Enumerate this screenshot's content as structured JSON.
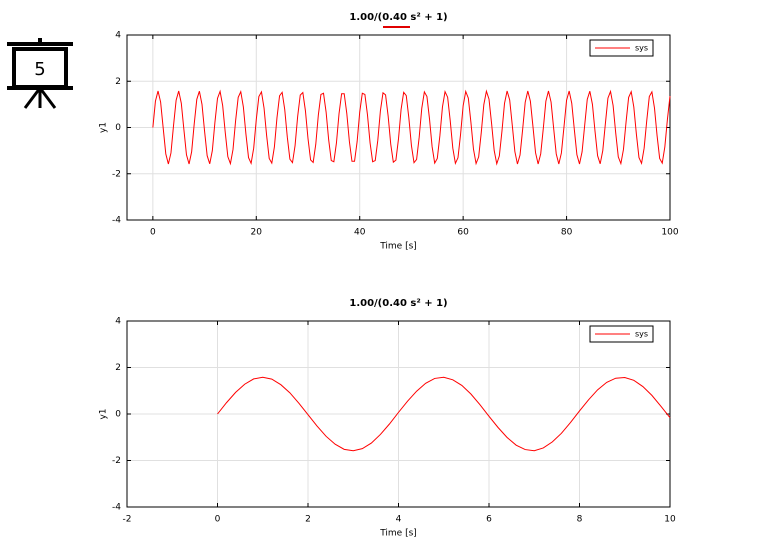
{
  "badge": "5",
  "chart_data": [
    {
      "type": "line",
      "title": "1.00/(0.40 s² + 1)",
      "x_label": "Time [s]",
      "y_label": "y1",
      "xlim": [
        -5,
        100
      ],
      "xticks": [
        0,
        20,
        40,
        60,
        80,
        100
      ],
      "ylim": [
        -4,
        4
      ],
      "yticks": [
        -4,
        -2,
        0,
        2,
        4
      ],
      "grid": true,
      "legend": "upper right",
      "x": [
        0,
        0.5,
        1,
        1.5,
        2,
        2.5,
        3,
        3.5,
        4,
        4.5,
        5,
        5.5,
        6,
        6.5,
        7,
        7.5,
        8,
        8.5,
        9,
        9.5,
        10,
        10.5,
        11,
        11.5,
        12,
        12.5,
        13,
        13.5,
        14,
        14.5,
        15,
        15.5,
        16,
        16.5,
        17,
        17.5,
        18,
        18.5,
        19,
        19.5,
        20,
        20.5,
        21,
        21.5,
        22,
        22.5,
        23,
        23.5,
        24,
        24.5,
        25,
        25.5,
        26,
        26.5,
        27,
        27.5,
        28,
        28.5,
        29,
        29.5,
        30,
        30.5,
        31,
        31.5,
        32,
        32.5,
        33,
        33.5,
        34,
        34.5,
        35,
        35.5,
        36,
        36.5,
        37,
        37.5,
        38,
        38.5,
        39,
        39.5,
        40,
        40.5,
        41,
        41.5,
        42,
        42.5,
        43,
        43.5,
        44,
        44.5,
        45,
        45.5,
        46,
        46.5,
        47,
        47.5,
        48,
        48.5,
        49,
        49.5,
        50,
        50.5,
        51,
        51.5,
        52,
        52.5,
        53,
        53.5,
        54,
        54.5,
        55,
        55.5,
        56,
        56.5,
        57,
        57.5,
        58,
        58.5,
        59,
        59.5,
        60,
        60.5,
        61,
        61.5,
        62,
        62.5,
        63,
        63.5,
        64,
        64.5,
        65,
        65.5,
        66,
        66.5,
        67,
        67.5,
        68,
        68.5,
        69,
        69.5,
        70,
        70.5,
        71,
        71.5,
        72,
        72.5,
        73,
        73.5,
        74,
        74.5,
        75,
        75.5,
        76,
        76.5,
        77,
        77.5,
        78,
        78.5,
        79,
        79.5,
        80,
        80.5,
        81,
        81.5,
        82,
        82.5,
        83,
        83.5,
        84,
        84.5,
        85,
        85.5,
        86,
        86.5,
        87,
        87.5,
        88,
        88.5,
        89,
        89.5,
        90,
        90.5,
        91,
        91.5,
        92,
        92.5,
        93,
        93.5,
        94,
        94.5,
        95,
        95.5,
        96,
        96.5,
        97,
        97.5,
        98,
        98.5,
        99,
        99.5,
        100
      ],
      "series": [
        {
          "name": "sys",
          "color": "#ff0000",
          "values": [
            0,
            1.14,
            1.58,
            1.1,
            -0.03,
            -1.14,
            -1.58,
            -1.1,
            0.09,
            1.18,
            1.58,
            1.05,
            -0.09,
            -1.18,
            -1.58,
            -1.05,
            0.16,
            1.22,
            1.57,
            1.0,
            -0.16,
            -1.22,
            -1.57,
            -1.0,
            0.22,
            1.26,
            1.56,
            0.95,
            -0.22,
            -1.26,
            -1.56,
            -0.95,
            0.29,
            1.3,
            1.55,
            0.89,
            -0.29,
            -1.3,
            -1.55,
            -0.89,
            0.35,
            1.34,
            1.54,
            0.84,
            -0.35,
            -1.34,
            -1.54,
            -0.84,
            0.42,
            1.37,
            1.52,
            0.78,
            -0.42,
            -1.37,
            -1.52,
            -0.78,
            0.48,
            1.4,
            1.51,
            0.73,
            -0.48,
            -1.4,
            -1.51,
            -0.73,
            0.54,
            1.43,
            1.48,
            0.67,
            -0.54,
            -1.43,
            -1.48,
            -0.67,
            0.6,
            1.46,
            1.46,
            0.61,
            -0.6,
            -1.46,
            -1.46,
            -0.61,
            0.66,
            1.48,
            1.43,
            0.55,
            -0.66,
            -1.48,
            -1.43,
            -0.55,
            0.72,
            1.5,
            1.41,
            0.49,
            -0.72,
            -1.5,
            -1.41,
            -0.49,
            0.78,
            1.52,
            1.38,
            0.42,
            -0.78,
            -1.52,
            -1.38,
            -0.42,
            0.83,
            1.54,
            1.34,
            0.36,
            -0.83,
            -1.54,
            -1.34,
            -0.36,
            0.89,
            1.55,
            1.31,
            0.3,
            -0.89,
            -1.55,
            -1.31,
            -0.3,
            0.94,
            1.56,
            1.27,
            0.23,
            -0.94,
            -1.56,
            -1.27,
            -0.23,
            0.99,
            1.57,
            1.23,
            0.17,
            -0.99,
            -1.57,
            -1.23,
            -0.17,
            1.04,
            1.58,
            1.19,
            0.1,
            -1.04,
            -1.58,
            -1.19,
            -0.1,
            1.09,
            1.58,
            1.14,
            0.04,
            -1.09,
            -1.58,
            -1.14,
            -0.04,
            1.14,
            1.58,
            1.1,
            -0.03,
            -1.14,
            -1.58,
            -1.1,
            0.03,
            1.18,
            1.58,
            1.05,
            -0.09,
            -1.18,
            -1.58,
            -1.05,
            0.09,
            1.22,
            1.57,
            1.0,
            -0.16,
            -1.22,
            -1.57,
            -1.0,
            0.16,
            1.27,
            1.56,
            0.95,
            -0.23,
            -1.27,
            -1.56,
            -0.95,
            0.23,
            1.3,
            1.55,
            0.89,
            -0.29,
            -1.3,
            -1.55,
            -0.89,
            0.29,
            1.34,
            1.54,
            0.84,
            -0.35,
            -1.34,
            -1.54,
            -0.84,
            0.35,
            1.36
          ]
        }
      ]
    },
    {
      "type": "line",
      "title": "1.00/(0.40 s² + 1)",
      "x_label": "Time [s]",
      "y_label": "y1",
      "xlim": [
        -2,
        10
      ],
      "xticks": [
        -2,
        0,
        2,
        4,
        6,
        8,
        10
      ],
      "ylim": [
        -4,
        4
      ],
      "yticks": [
        -4,
        -2,
        0,
        2,
        4
      ],
      "grid": true,
      "legend": "upper right",
      "x": [
        0,
        0.2,
        0.4,
        0.6,
        0.8,
        1,
        1.2,
        1.4,
        1.6,
        1.8,
        2,
        2.2,
        2.4,
        2.6,
        2.8,
        3,
        3.2,
        3.4,
        3.6,
        3.8,
        4,
        4.2,
        4.4,
        4.6,
        4.8,
        5,
        5.2,
        5.4,
        5.6,
        5.8,
        6,
        6.2,
        6.4,
        6.6,
        6.8,
        7,
        7.2,
        7.4,
        7.6,
        7.8,
        8,
        8.2,
        8.4,
        8.6,
        8.8,
        9,
        9.2,
        9.4,
        9.6,
        9.8,
        10
      ],
      "series": [
        {
          "name": "sys",
          "color": "#ff0000",
          "values": [
            0,
            0.49,
            0.93,
            1.28,
            1.51,
            1.58,
            1.5,
            1.26,
            0.91,
            0.46,
            -0.03,
            -0.52,
            -0.96,
            -1.3,
            -1.52,
            -1.58,
            -1.49,
            -1.25,
            -0.88,
            -0.43,
            0.07,
            0.55,
            0.98,
            1.32,
            1.53,
            1.58,
            1.47,
            1.23,
            0.86,
            0.4,
            -0.1,
            -0.58,
            -1.01,
            -1.34,
            -1.53,
            -1.58,
            -1.46,
            -1.2,
            -0.83,
            -0.37,
            0.13,
            0.61,
            1.04,
            1.36,
            1.54,
            1.57,
            1.45,
            1.18,
            0.8,
            0.33,
            -0.16
          ]
        }
      ]
    }
  ]
}
